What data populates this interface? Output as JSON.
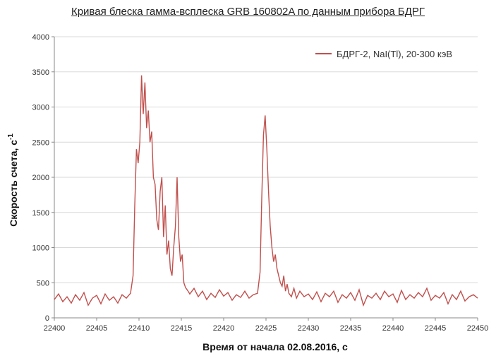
{
  "chart_data": {
    "type": "line",
    "title": "Кривая блеска гамма-всплеска GRB 160802A по данным прибора БДРГ",
    "xlabel": "Время от начала 02.08.2016, с",
    "ylabel_main": "Скорость счета, с",
    "ylabel_sup": "-1",
    "xlim": [
      22400,
      22450
    ],
    "ylim": [
      0,
      4000
    ],
    "x_ticks": [
      "22400",
      "22405",
      "22410",
      "22415",
      "22420",
      "22425",
      "22430",
      "22435",
      "22440",
      "22445",
      "22450"
    ],
    "y_ticks": [
      "0",
      "500",
      "1000",
      "1500",
      "2000",
      "2500",
      "3000",
      "3500",
      "4000"
    ],
    "grid": "horizontal",
    "legend_position": "top-right",
    "colors": {
      "series": "#c0504d"
    },
    "series": [
      {
        "name": "БДРГ-2, NaI(Tl), 20-300 кэВ",
        "x": [
          22400.0,
          22400.5,
          22401.0,
          22401.5,
          22402.0,
          22402.5,
          22403.0,
          22403.5,
          22404.0,
          22404.5,
          22405.0,
          22405.5,
          22406.0,
          22406.5,
          22407.0,
          22407.5,
          22408.0,
          22408.5,
          22409.0,
          22409.3,
          22409.5,
          22409.7,
          22409.9,
          22410.1,
          22410.3,
          22410.5,
          22410.7,
          22410.9,
          22411.1,
          22411.3,
          22411.5,
          22411.7,
          22411.9,
          22412.1,
          22412.3,
          22412.5,
          22412.7,
          22412.9,
          22413.1,
          22413.3,
          22413.5,
          22413.7,
          22413.9,
          22414.1,
          22414.3,
          22414.5,
          22414.7,
          22414.9,
          22415.1,
          22415.3,
          22415.5,
          22415.8,
          22416.0,
          22416.5,
          22417.0,
          22417.5,
          22418.0,
          22418.5,
          22419.0,
          22419.5,
          22420.0,
          22420.5,
          22421.0,
          22421.5,
          22422.0,
          22422.5,
          22423.0,
          22423.5,
          22424.0,
          22424.3,
          22424.5,
          22424.7,
          22424.9,
          22425.1,
          22425.3,
          22425.5,
          22425.7,
          22425.9,
          22426.1,
          22426.3,
          22426.5,
          22426.7,
          22426.9,
          22427.1,
          22427.3,
          22427.5,
          22427.7,
          22428.0,
          22428.3,
          22428.6,
          22429.0,
          22429.5,
          22430.0,
          22430.5,
          22431.0,
          22431.5,
          22432.0,
          22432.5,
          22433.0,
          22433.5,
          22434.0,
          22434.5,
          22435.0,
          22435.5,
          22436.0,
          22436.5,
          22437.0,
          22437.5,
          22438.0,
          22438.5,
          22439.0,
          22439.5,
          22440.0,
          22440.5,
          22441.0,
          22441.5,
          22442.0,
          22442.5,
          22443.0,
          22443.5,
          22444.0,
          22444.5,
          22445.0,
          22445.5,
          22446.0,
          22446.5,
          22447.0,
          22447.5,
          22448.0,
          22448.5,
          22449.0,
          22449.5,
          22450.0
        ],
        "values": [
          260,
          340,
          230,
          300,
          210,
          330,
          250,
          360,
          180,
          280,
          320,
          200,
          340,
          250,
          300,
          210,
          330,
          280,
          350,
          600,
          1600,
          2400,
          2200,
          2500,
          3450,
          2900,
          3350,
          2700,
          2950,
          2500,
          2650,
          2000,
          1900,
          1400,
          1250,
          1800,
          2000,
          1150,
          1600,
          900,
          1100,
          700,
          600,
          1000,
          1300,
          2000,
          1150,
          800,
          900,
          500,
          430,
          380,
          340,
          420,
          300,
          380,
          260,
          350,
          290,
          400,
          310,
          360,
          250,
          330,
          290,
          380,
          280,
          330,
          350,
          650,
          1700,
          2600,
          2880,
          2400,
          1800,
          1300,
          1000,
          800,
          900,
          700,
          600,
          500,
          450,
          600,
          380,
          480,
          350,
          300,
          420,
          280,
          380,
          300,
          340,
          260,
          370,
          230,
          350,
          300,
          380,
          220,
          330,
          280,
          360,
          250,
          400,
          180,
          320,
          280,
          350,
          260,
          380,
          300,
          340,
          220,
          390,
          260,
          330,
          280,
          360,
          300,
          420,
          250,
          320,
          280,
          360,
          200,
          330,
          260,
          380,
          240,
          300,
          330,
          280
        ]
      }
    ]
  }
}
